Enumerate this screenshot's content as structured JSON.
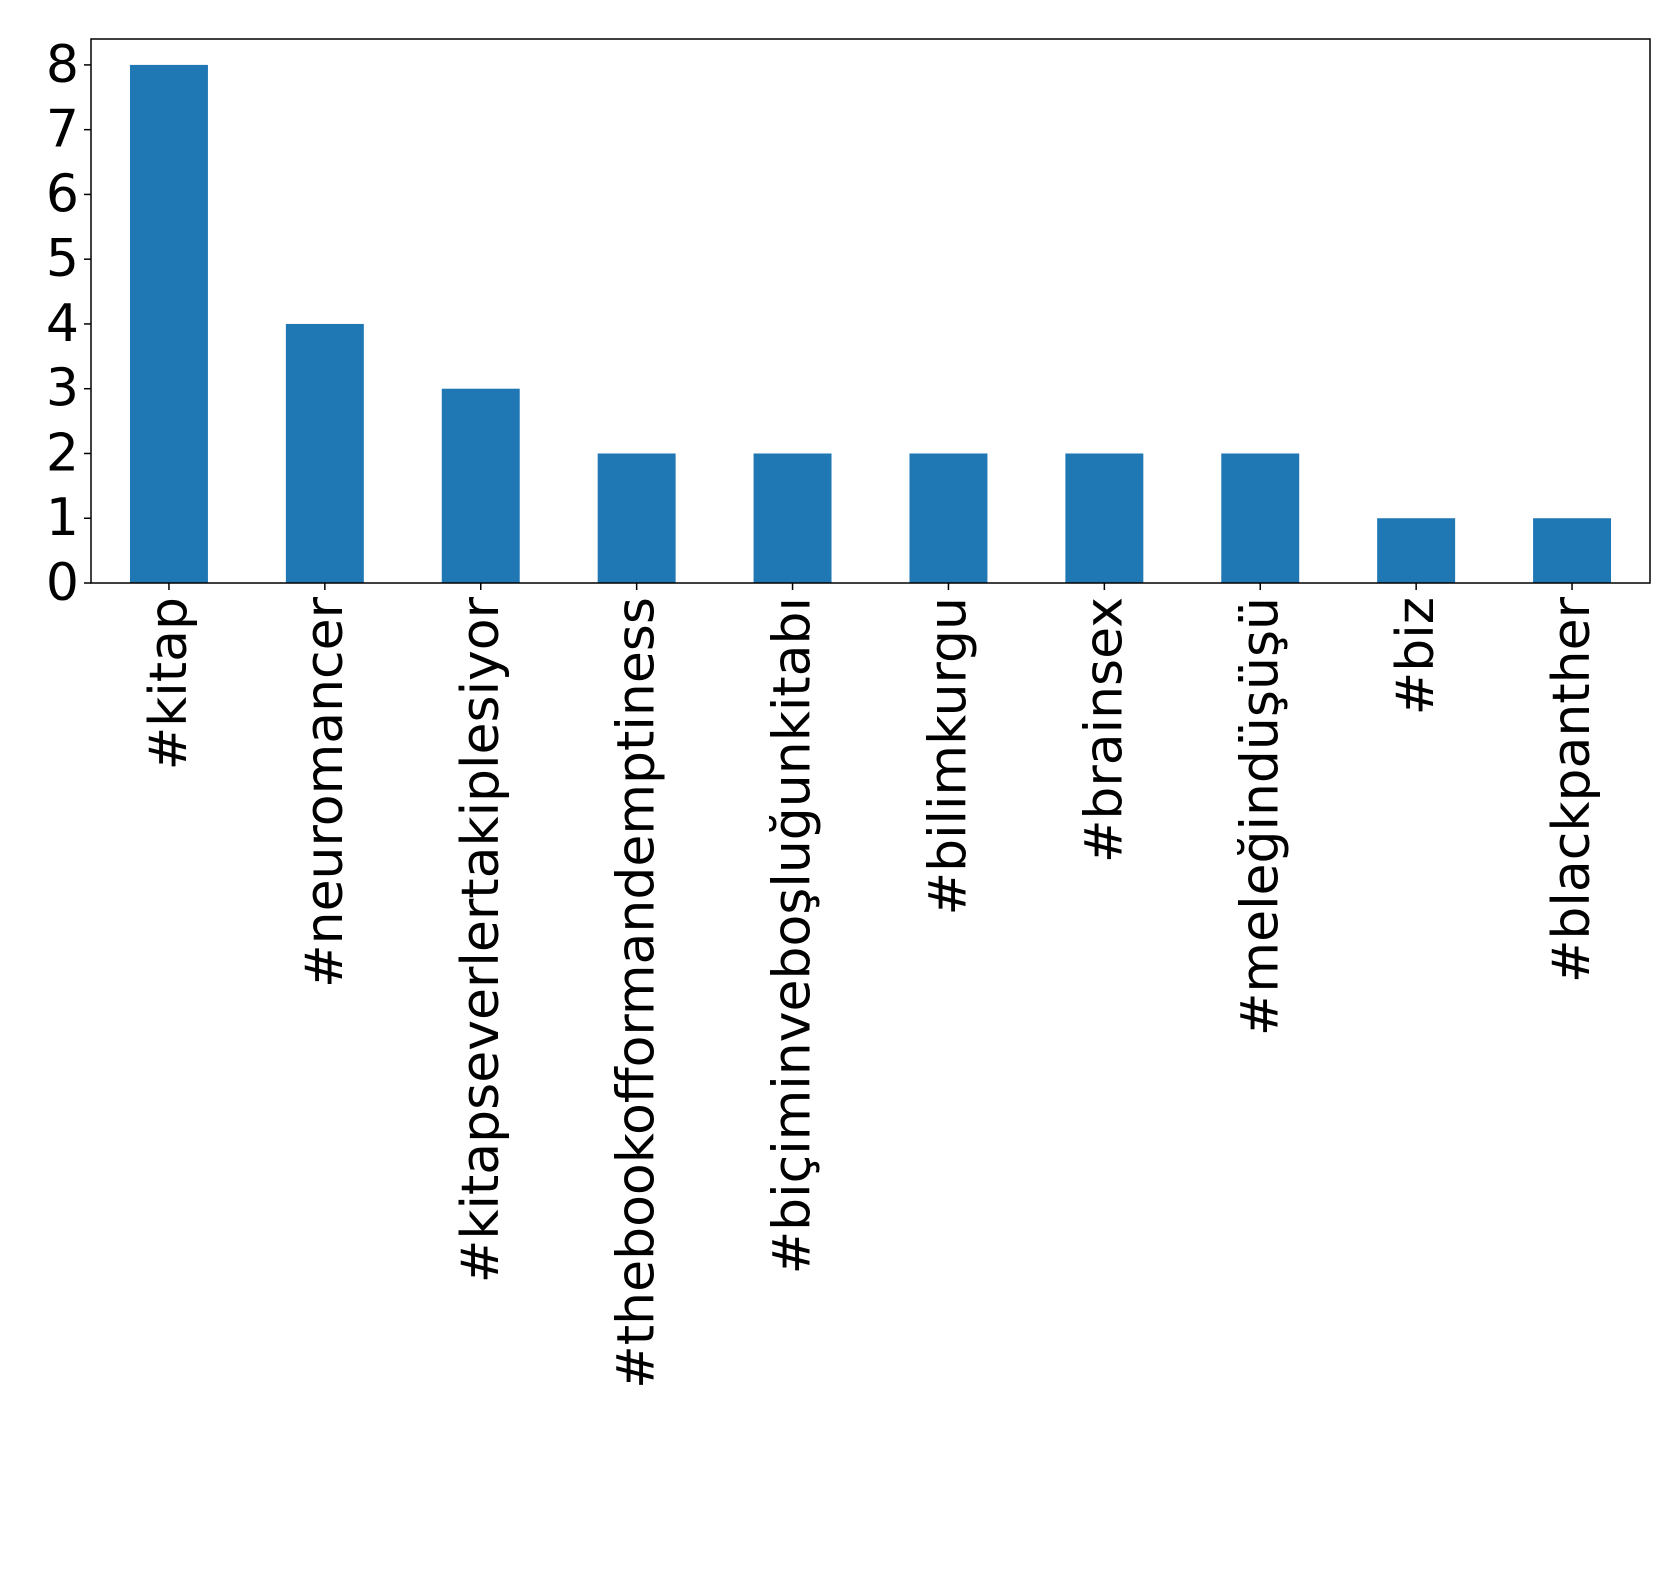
{
  "chart_data": {
    "type": "bar",
    "categories": [
      "#kitap",
      "#neuromancer",
      "#kitapseverlertakiplesiyor",
      "#thebookofformandemptiness",
      "#biçiminveboşluğunkitabı",
      "#bilimkurgu",
      "#brainsex",
      "#meleğindüşüşü",
      "#biz",
      "#blackpanther"
    ],
    "values": [
      8,
      4,
      3,
      2,
      2,
      2,
      2,
      2,
      1,
      1
    ],
    "ylim": [
      0,
      8.4
    ],
    "yticks": [
      0,
      1,
      2,
      3,
      4,
      5,
      6,
      7,
      8
    ],
    "title": "",
    "xlabel": "",
    "ylabel": "",
    "grid": false,
    "legend": "none",
    "bar_color": "#1f77b4"
  }
}
